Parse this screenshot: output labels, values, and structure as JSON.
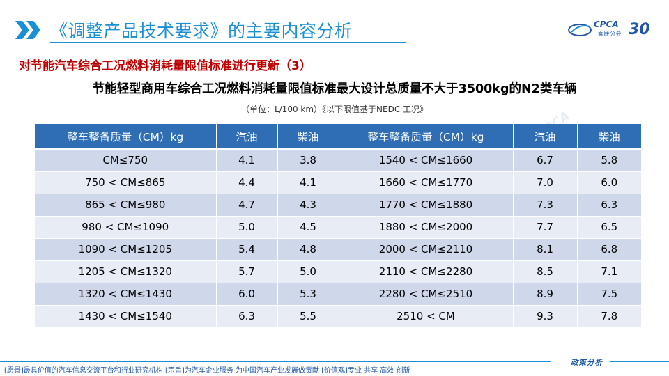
{
  "header": {
    "title": "《调整产品技术要求》的主要内容分析",
    "logo_text": "CPCA",
    "logo_sub": "乘联分会",
    "logo_anniv": "30",
    "accent_color": "#1a8fd6"
  },
  "section": {
    "title": "对节能汽车综合工况燃料消耗量限值标准进行更新（3）",
    "table_heading": "节能轻型商用车综合工况燃料消耗量限值标准最大设计总质量不大于3500kg的N2类车辆",
    "unit_note": "（单位：L/100 km）《以下限值基于NEDC 工况》"
  },
  "table": {
    "headers": [
      "整车整备质量（CM）kg",
      "汽油",
      "柴油",
      "整车整备质量（CM）kg",
      "汽油",
      "柴油"
    ],
    "rows": [
      [
        "CM≤750",
        "4.1",
        "3.8",
        "1540 < CM≤1660",
        "6.7",
        "5.8"
      ],
      [
        "750 < CM≤865",
        "4.4",
        "4.1",
        "1660 < CM≤1770",
        "7.0",
        "6.0"
      ],
      [
        "865 < CM≤980",
        "4.7",
        "4.3",
        "1770 < CM≤1880",
        "7.3",
        "6.3"
      ],
      [
        "980 < CM≤1090",
        "5.0",
        "4.5",
        "1880 < CM≤2000",
        "7.7",
        "6.5"
      ],
      [
        "1090 < CM≤1205",
        "5.4",
        "4.8",
        "2000 < CM≤2110",
        "8.1",
        "6.8"
      ],
      [
        "1205 < CM≤1320",
        "5.7",
        "5.0",
        "2110 < CM≤2280",
        "8.5",
        "7.1"
      ],
      [
        "1320 < CM≤1430",
        "6.0",
        "5.3",
        "2280 < CM≤2510",
        "8.9",
        "7.5"
      ],
      [
        "1430 < CM≤1540",
        "6.3",
        "5.5",
        "2510 < CM",
        "9.3",
        "7.8"
      ]
    ]
  },
  "footer": {
    "text": "[愿景]最具价值的汽车信息交流平台和行业研究机构   [宗旨]为汽车企业服务  为中国汽车产业发展做贡献   [价值观]专业  共享  高效  创新",
    "tag": "政策分析"
  },
  "watermark_text": "CPCA"
}
